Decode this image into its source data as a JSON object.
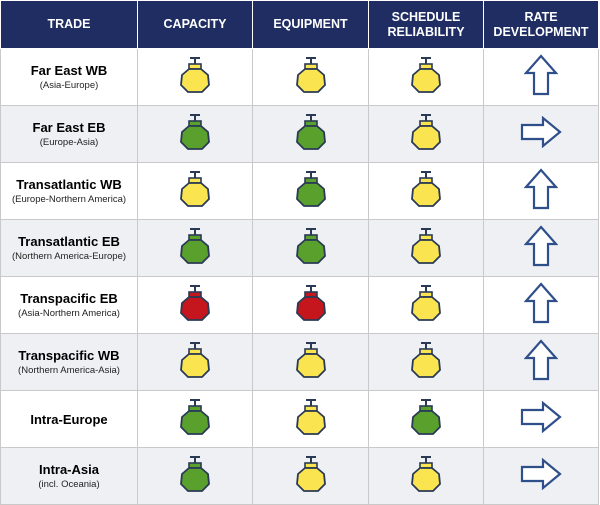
{
  "header": {
    "trade": "TRADE",
    "capacity": "CAPACITY",
    "equipment": "EQUIPMENT",
    "schedule_line1": "SCHEDULE",
    "schedule_line2": "RELIABILITY",
    "rate_line1": "RATE",
    "rate_line2": "DEVELOPMENT"
  },
  "colors": {
    "header_bg": "#1f2d63",
    "yellow": "#fae551",
    "green": "#5aa02c",
    "red": "#c4161c",
    "arrow_stroke": "#2e4f8a"
  },
  "rows": [
    {
      "name": "Far East WB",
      "sub": "(Asia-Europe)",
      "capacity": "yellow",
      "equipment": "yellow",
      "schedule": "yellow",
      "rate": "up"
    },
    {
      "name": "Far East EB",
      "sub": "(Europe-Asia)",
      "capacity": "green",
      "equipment": "green",
      "schedule": "yellow",
      "rate": "right"
    },
    {
      "name": "Transatlantic WB",
      "sub": "(Europe-Northern America)",
      "capacity": "yellow",
      "equipment": "green",
      "schedule": "yellow",
      "rate": "up"
    },
    {
      "name": "Transatlantic EB",
      "sub": "(Northern America-Europe)",
      "capacity": "green",
      "equipment": "green",
      "schedule": "yellow",
      "rate": "up"
    },
    {
      "name": "Transpacific EB",
      "sub": "(Asia-Northern America)",
      "capacity": "red",
      "equipment": "red",
      "schedule": "yellow",
      "rate": "up"
    },
    {
      "name": "Transpacific WB",
      "sub": "(Northern America-Asia)",
      "capacity": "yellow",
      "equipment": "yellow",
      "schedule": "yellow",
      "rate": "up"
    },
    {
      "name": "Intra-Europe",
      "sub": "",
      "capacity": "green",
      "equipment": "yellow",
      "schedule": "green",
      "rate": "right"
    },
    {
      "name": "Intra-Asia",
      "sub": "(incl. Oceania)",
      "capacity": "green",
      "equipment": "yellow",
      "schedule": "yellow",
      "rate": "right"
    }
  ]
}
